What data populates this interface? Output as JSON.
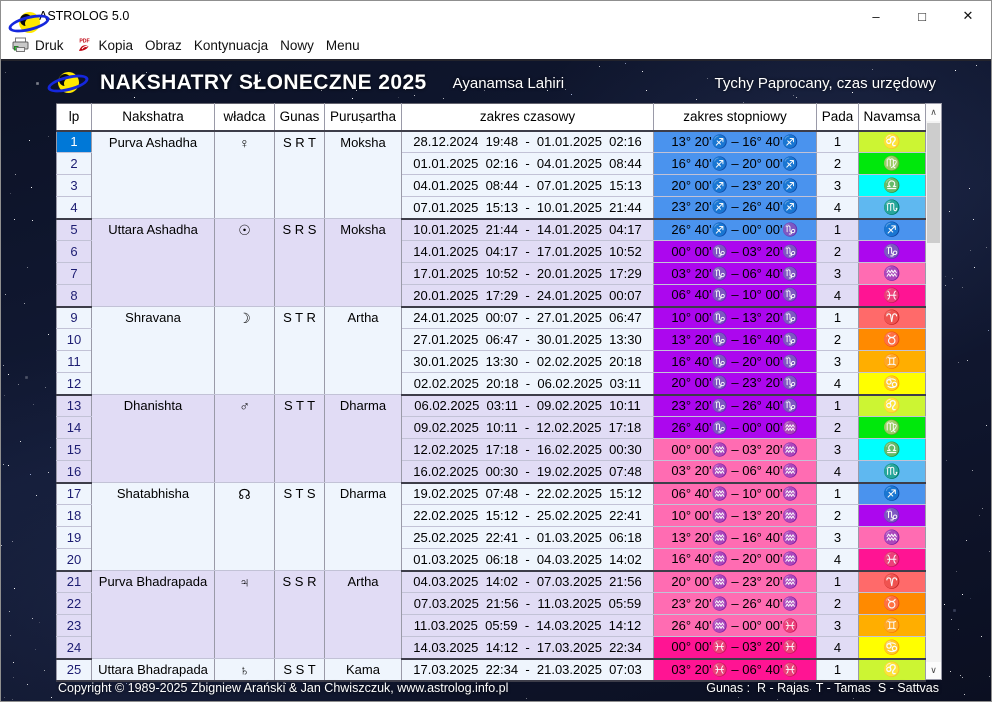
{
  "window": {
    "title": "ASTROLOG 5.0",
    "controls": [
      {
        "name": "minimize",
        "glyph": "–"
      },
      {
        "name": "maximize",
        "glyph": "□"
      },
      {
        "name": "close",
        "glyph": "✕"
      }
    ]
  },
  "menu": {
    "items": [
      {
        "label": "Druk",
        "icon": "printer-icon",
        "icon_text": ""
      },
      {
        "label": "Kopia",
        "icon": "pdf-icon",
        "icon_text": "PDF"
      },
      {
        "label": "Obraz",
        "icon": null
      },
      {
        "label": "Kontynuacja",
        "icon": null
      },
      {
        "label": "Nowy",
        "icon": null
      },
      {
        "label": "Menu",
        "icon": null
      }
    ]
  },
  "header": {
    "title": "NAKSHATRY SŁONECZNE 2025",
    "ayanamsa": "Ayanamsa Lahiri",
    "location": "Tychy Paprocany, czas urzędowy"
  },
  "table": {
    "selected_lp": 1,
    "columns": [
      "lp",
      "Nakshatra",
      "władca",
      "Gunas",
      "Puruṣartha",
      "zakres czasowy",
      "zakres stopniowy",
      "Pada",
      "Navamsa"
    ],
    "groups": [
      {
        "nakshatra": "Purva Ashadha",
        "ruler_name": "venus",
        "ruler_glyph": "♀",
        "gunas": "S R T",
        "purusartha": "Moksha",
        "rows": [
          {
            "lp": 1,
            "time": "28.12.2024  19:48  -  01.01.2025  02:16",
            "degree": "13° 20'♐ – 16° 40'♐",
            "degree_sign": "sagittarius",
            "pada": 1,
            "navamsa_glyph": "♌",
            "navamsa_sign": "leo"
          },
          {
            "lp": 2,
            "time": "01.01.2025  02:16  -  04.01.2025  08:44",
            "degree": "16° 40'♐ – 20° 00'♐",
            "degree_sign": "sagittarius",
            "pada": 2,
            "navamsa_glyph": "♍",
            "navamsa_sign": "virgo"
          },
          {
            "lp": 3,
            "time": "04.01.2025  08:44  -  07.01.2025  15:13",
            "degree": "20° 00'♐ – 23° 20'♐",
            "degree_sign": "sagittarius",
            "pada": 3,
            "navamsa_glyph": "♎",
            "navamsa_sign": "libra"
          },
          {
            "lp": 4,
            "time": "07.01.2025  15:13  -  10.01.2025  21:44",
            "degree": "23° 20'♐ – 26° 40'♐",
            "degree_sign": "sagittarius",
            "pada": 4,
            "navamsa_glyph": "♏",
            "navamsa_sign": "scorpio"
          }
        ]
      },
      {
        "nakshatra": "Uttara Ashadha",
        "ruler_name": "sun",
        "ruler_glyph": "☉",
        "gunas": "S R S",
        "purusartha": "Moksha",
        "rows": [
          {
            "lp": 5,
            "time": "10.01.2025  21:44  -  14.01.2025  04:17",
            "degree": "26° 40'♐ – 00° 00'♑",
            "degree_sign": "sagittarius",
            "pada": 1,
            "navamsa_glyph": "♐",
            "navamsa_sign": "sagittarius"
          },
          {
            "lp": 6,
            "time": "14.01.2025  04:17  -  17.01.2025  10:52",
            "degree": "00° 00'♑ – 03° 20'♑",
            "degree_sign": "capricorn",
            "pada": 2,
            "navamsa_glyph": "♑",
            "navamsa_sign": "capricorn"
          },
          {
            "lp": 7,
            "time": "17.01.2025  10:52  -  20.01.2025  17:29",
            "degree": "03° 20'♑ – 06° 40'♑",
            "degree_sign": "capricorn",
            "pada": 3,
            "navamsa_glyph": "♒",
            "navamsa_sign": "aquarius"
          },
          {
            "lp": 8,
            "time": "20.01.2025  17:29  -  24.01.2025  00:07",
            "degree": "06° 40'♑ – 10° 00'♑",
            "degree_sign": "capricorn",
            "pada": 4,
            "navamsa_glyph": "♓",
            "navamsa_sign": "pisces"
          }
        ]
      },
      {
        "nakshatra": "Shravana",
        "ruler_name": "moon",
        "ruler_glyph": "☽",
        "gunas": "S T R",
        "purusartha": "Artha",
        "rows": [
          {
            "lp": 9,
            "time": "24.01.2025  00:07  -  27.01.2025  06:47",
            "degree": "10° 00'♑ – 13° 20'♑",
            "degree_sign": "capricorn",
            "pada": 1,
            "navamsa_glyph": "♈",
            "navamsa_sign": "aries"
          },
          {
            "lp": 10,
            "time": "27.01.2025  06:47  -  30.01.2025  13:30",
            "degree": "13° 20'♑ – 16° 40'♑",
            "degree_sign": "capricorn",
            "pada": 2,
            "navamsa_glyph": "♉",
            "navamsa_sign": "taurus"
          },
          {
            "lp": 11,
            "time": "30.01.2025  13:30  -  02.02.2025  20:18",
            "degree": "16° 40'♑ – 20° 00'♑",
            "degree_sign": "capricorn",
            "pada": 3,
            "navamsa_glyph": "♊",
            "navamsa_sign": "gemini"
          },
          {
            "lp": 12,
            "time": "02.02.2025  20:18  -  06.02.2025  03:11",
            "degree": "20° 00'♑ – 23° 20'♑",
            "degree_sign": "capricorn",
            "pada": 4,
            "navamsa_glyph": "♋",
            "navamsa_sign": "cancer"
          }
        ]
      },
      {
        "nakshatra": "Dhanishta",
        "ruler_name": "mars",
        "ruler_glyph": "♂",
        "gunas": "S T T",
        "purusartha": "Dharma",
        "rows": [
          {
            "lp": 13,
            "time": "06.02.2025  03:11  -  09.02.2025  10:11",
            "degree": "23° 20'♑ – 26° 40'♑",
            "degree_sign": "capricorn",
            "pada": 1,
            "navamsa_glyph": "♌",
            "navamsa_sign": "leo"
          },
          {
            "lp": 14,
            "time": "09.02.2025  10:11  -  12.02.2025  17:18",
            "degree": "26° 40'♑ – 00° 00'♒",
            "degree_sign": "capricorn",
            "pada": 2,
            "navamsa_glyph": "♍",
            "navamsa_sign": "virgo"
          },
          {
            "lp": 15,
            "time": "12.02.2025  17:18  -  16.02.2025  00:30",
            "degree": "00° 00'♒ – 03° 20'♒",
            "degree_sign": "aquarius",
            "pada": 3,
            "navamsa_glyph": "♎",
            "navamsa_sign": "libra"
          },
          {
            "lp": 16,
            "time": "16.02.2025  00:30  -  19.02.2025  07:48",
            "degree": "03° 20'♒ – 06° 40'♒",
            "degree_sign": "aquarius",
            "pada": 4,
            "navamsa_glyph": "♏",
            "navamsa_sign": "scorpio"
          }
        ]
      },
      {
        "nakshatra": "Shatabhisha",
        "ruler_name": "rahu",
        "ruler_glyph": "☊",
        "gunas": "S T S",
        "purusartha": "Dharma",
        "rows": [
          {
            "lp": 17,
            "time": "19.02.2025  07:48  -  22.02.2025  15:12",
            "degree": "06° 40'♒ – 10° 00'♒",
            "degree_sign": "aquarius",
            "pada": 1,
            "navamsa_glyph": "♐",
            "navamsa_sign": "sagittarius"
          },
          {
            "lp": 18,
            "time": "22.02.2025  15:12  -  25.02.2025  22:41",
            "degree": "10° 00'♒ – 13° 20'♒",
            "degree_sign": "aquarius",
            "pada": 2,
            "navamsa_glyph": "♑",
            "navamsa_sign": "capricorn"
          },
          {
            "lp": 19,
            "time": "25.02.2025  22:41  -  01.03.2025  06:18",
            "degree": "13° 20'♒ – 16° 40'♒",
            "degree_sign": "aquarius",
            "pada": 3,
            "navamsa_glyph": "♒",
            "navamsa_sign": "aquarius"
          },
          {
            "lp": 20,
            "time": "01.03.2025  06:18  -  04.03.2025  14:02",
            "degree": "16° 40'♒ – 20° 00'♒",
            "degree_sign": "aquarius",
            "pada": 4,
            "navamsa_glyph": "♓",
            "navamsa_sign": "pisces"
          }
        ]
      },
      {
        "nakshatra": "Purva Bhadrapada",
        "ruler_name": "jupiter",
        "ruler_glyph": "♃",
        "gunas": "S S R",
        "purusartha": "Artha",
        "rows": [
          {
            "lp": 21,
            "time": "04.03.2025  14:02  -  07.03.2025  21:56",
            "degree": "20° 00'♒ – 23° 20'♒",
            "degree_sign": "aquarius",
            "pada": 1,
            "navamsa_glyph": "♈",
            "navamsa_sign": "aries"
          },
          {
            "lp": 22,
            "time": "07.03.2025  21:56  -  11.03.2025  05:59",
            "degree": "23° 20'♒ – 26° 40'♒",
            "degree_sign": "aquarius",
            "pada": 2,
            "navamsa_glyph": "♉",
            "navamsa_sign": "taurus"
          },
          {
            "lp": 23,
            "time": "11.03.2025  05:59  -  14.03.2025  14:12",
            "degree": "26° 40'♒ – 00° 00'♓",
            "degree_sign": "aquarius",
            "pada": 3,
            "navamsa_glyph": "♊",
            "navamsa_sign": "gemini"
          },
          {
            "lp": 24,
            "time": "14.03.2025  14:12  -  17.03.2025  22:34",
            "degree": "00° 00'♓ – 03° 20'♓",
            "degree_sign": "pisces",
            "pada": 4,
            "navamsa_glyph": "♋",
            "navamsa_sign": "cancer"
          }
        ]
      },
      {
        "nakshatra": "Uttara Bhadrapada",
        "ruler_name": "saturn",
        "ruler_glyph": "♄",
        "gunas": "S S T",
        "purusartha": "Kama",
        "rows": [
          {
            "lp": 25,
            "time": "17.03.2025  22:34  -  21.03.2025  07:03",
            "degree": "03° 20'♓ – 06° 40'♓",
            "degree_sign": "pisces",
            "pada": 1,
            "navamsa_glyph": "♌",
            "navamsa_sign": "leo"
          }
        ]
      }
    ]
  },
  "scrollbar": {
    "up_glyph": "∧",
    "down_glyph": "∨"
  },
  "footer": {
    "copyright": "Copyright © 1989-2025 Zbigniew Arański & Jan Chwiszczuk, www.astrolog.info.pl",
    "gunas_legend": "Gunas :  R - Rajas  T - Tamas  S - Sattvas"
  },
  "colors": {
    "selected": "#0078D7",
    "group_light": "#EFF5FD",
    "group_lavender": "#E1DCF5",
    "signs": {
      "aries": "#FF6A6A",
      "taurus": "#FF8A00",
      "gemini": "#FFAE00",
      "cancer": "#FFFF00",
      "leo": "#CCF533",
      "virgo": "#00E80C",
      "libra": "#00FFFF",
      "scorpio": "#5FB8F0",
      "sagittarius": "#4A93EE",
      "capricorn": "#AC07EE",
      "aquarius": "#FF6CB2",
      "pisces": "#FF1493"
    }
  }
}
